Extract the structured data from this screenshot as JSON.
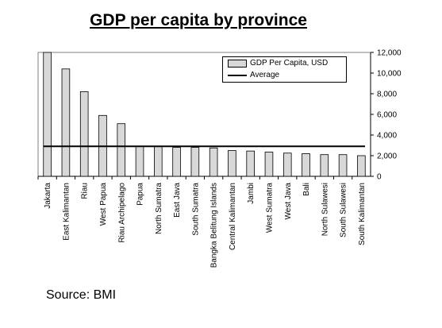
{
  "title": "GDP per capita by province",
  "source": "Source: BMI",
  "chart_data": {
    "type": "bar",
    "title": "GDP per capita by province",
    "categories": [
      "Jakarta",
      "East Kalimantan",
      "Riau",
      "West Papua",
      "Riau Archipelago",
      "Papua",
      "North Sumatra",
      "East Java",
      "South Sumatra",
      "Bangka Belitung Islands",
      "Central Kalimantan",
      "Jambi",
      "West Sumatra",
      "West Java",
      "Bali",
      "North Sulawesi",
      "South Sulawesi",
      "South Kalimantan"
    ],
    "series": [
      {
        "name": "GDP Per Capita, USD",
        "type": "bar",
        "values": [
          12000,
          10400,
          8200,
          5900,
          5100,
          2900,
          2900,
          2800,
          2800,
          2750,
          2500,
          2450,
          2350,
          2250,
          2200,
          2100,
          2100,
          2000
        ]
      },
      {
        "name": "Average",
        "type": "line",
        "value": 2900
      }
    ],
    "ylim": [
      0,
      12000
    ],
    "yticks": [
      0,
      2000,
      4000,
      6000,
      8000,
      10000,
      12000
    ],
    "ytick_labels": [
      "0",
      "2,000",
      "4,000",
      "6,000",
      "8,000",
      "10,000",
      "12,000"
    ],
    "y_axis_side": "right",
    "legend_position": "top-right",
    "grid": false,
    "colors": {
      "bar_fill": "#d8d8d8",
      "bar_stroke": "#000000",
      "average_line": "#000000"
    }
  }
}
